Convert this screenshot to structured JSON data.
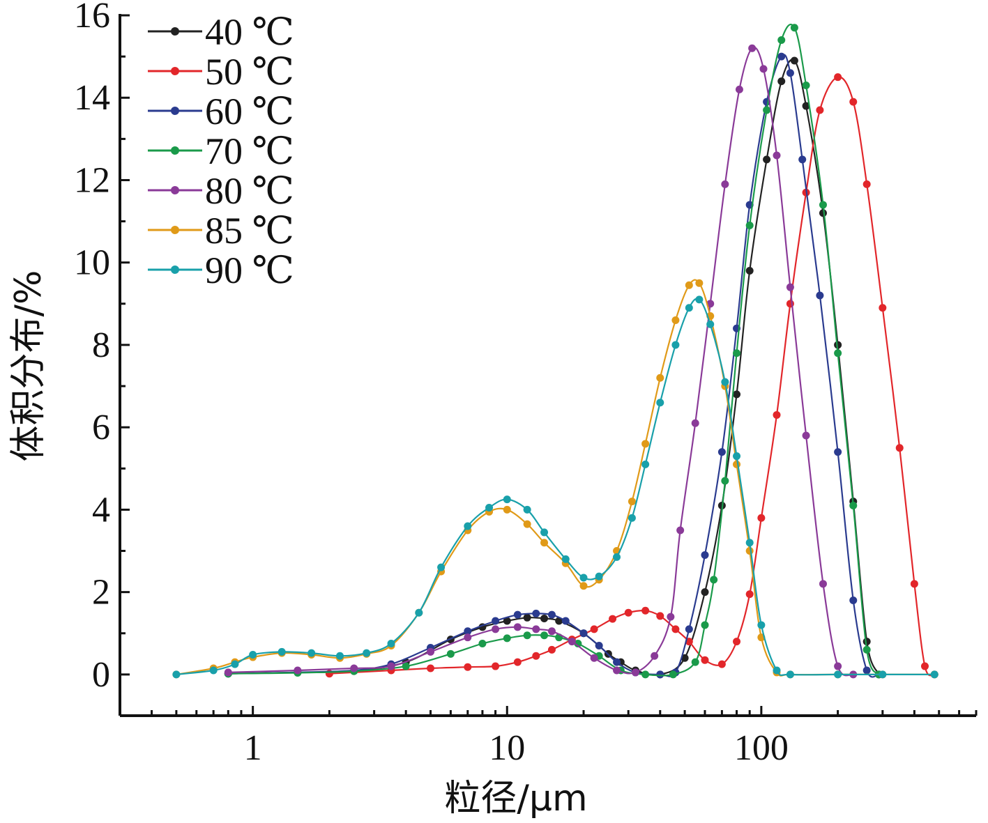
{
  "chart_data": {
    "type": "line",
    "xlabel": "粒径/μm",
    "ylabel": "体积分布/%",
    "x_scale": "log",
    "xlim": [
      0.3,
      700
    ],
    "ylim": [
      -1,
      16
    ],
    "x_ticks": [
      {
        "value": 1,
        "label": "1"
      },
      {
        "value": 10,
        "label": "10"
      },
      {
        "value": 100,
        "label": "100"
      }
    ],
    "y_ticks": [
      {
        "value": 0,
        "label": "0"
      },
      {
        "value": 2,
        "label": "2"
      },
      {
        "value": 4,
        "label": "4"
      },
      {
        "value": 6,
        "label": "6"
      },
      {
        "value": 8,
        "label": "8"
      },
      {
        "value": 10,
        "label": "10"
      },
      {
        "value": 12,
        "label": "12"
      },
      {
        "value": 14,
        "label": "14"
      },
      {
        "value": 16,
        "label": "16"
      }
    ],
    "grid": false,
    "legend_position": "top-left",
    "series": [
      {
        "name": "40 ℃",
        "color": "#222222",
        "points": [
          [
            0.8,
            0.02
          ],
          [
            1.5,
            0.05
          ],
          [
            2.5,
            0.08
          ],
          [
            4,
            0.3
          ],
          [
            6,
            0.85
          ],
          [
            8,
            1.15
          ],
          [
            10,
            1.3
          ],
          [
            12,
            1.38
          ],
          [
            14,
            1.36
          ],
          [
            16,
            1.3
          ],
          [
            20,
            1.0
          ],
          [
            25,
            0.5
          ],
          [
            28,
            0.3
          ],
          [
            32,
            0.1
          ],
          [
            40,
            0.0
          ],
          [
            50,
            0.4
          ],
          [
            60,
            2.0
          ],
          [
            70,
            4.1
          ],
          [
            80,
            6.8
          ],
          [
            90,
            9.8
          ],
          [
            105,
            12.5
          ],
          [
            120,
            14.4
          ],
          [
            135,
            14.9
          ],
          [
            150,
            13.8
          ],
          [
            175,
            11.2
          ],
          [
            200,
            8.0
          ],
          [
            230,
            4.2
          ],
          [
            260,
            0.8
          ],
          [
            290,
            0.0
          ]
        ]
      },
      {
        "name": "50 ℃",
        "color": "#e2262a",
        "points": [
          [
            2.0,
            0.02
          ],
          [
            3.5,
            0.1
          ],
          [
            5,
            0.15
          ],
          [
            7,
            0.18
          ],
          [
            9,
            0.2
          ],
          [
            11,
            0.3
          ],
          [
            13,
            0.45
          ],
          [
            15,
            0.6
          ],
          [
            18,
            0.85
          ],
          [
            22,
            1.1
          ],
          [
            26,
            1.35
          ],
          [
            30,
            1.5
          ],
          [
            35,
            1.55
          ],
          [
            40,
            1.42
          ],
          [
            46,
            1.1
          ],
          [
            52,
            0.8
          ],
          [
            60,
            0.35
          ],
          [
            70,
            0.25
          ],
          [
            80,
            0.8
          ],
          [
            90,
            1.95
          ],
          [
            100,
            3.8
          ],
          [
            115,
            6.3
          ],
          [
            130,
            9.0
          ],
          [
            150,
            11.7
          ],
          [
            170,
            13.7
          ],
          [
            200,
            14.5
          ],
          [
            230,
            13.9
          ],
          [
            260,
            11.9
          ],
          [
            300,
            8.9
          ],
          [
            350,
            5.5
          ],
          [
            400,
            2.2
          ],
          [
            440,
            0.2
          ],
          [
            480,
            0.0
          ]
        ]
      },
      {
        "name": "60 ℃",
        "color": "#2a3b8f",
        "points": [
          [
            0.8,
            0.02
          ],
          [
            1.5,
            0.05
          ],
          [
            2.5,
            0.1
          ],
          [
            3.5,
            0.25
          ],
          [
            5,
            0.65
          ],
          [
            7,
            1.05
          ],
          [
            9,
            1.3
          ],
          [
            11,
            1.45
          ],
          [
            13,
            1.48
          ],
          [
            15,
            1.45
          ],
          [
            17,
            1.3
          ],
          [
            20,
            1.0
          ],
          [
            23,
            0.7
          ],
          [
            27,
            0.3
          ],
          [
            32,
            0.05
          ],
          [
            40,
            0.0
          ],
          [
            46,
            0.05
          ],
          [
            52,
            1.1
          ],
          [
            60,
            2.9
          ],
          [
            70,
            5.4
          ],
          [
            80,
            8.4
          ],
          [
            90,
            11.4
          ],
          [
            105,
            13.9
          ],
          [
            120,
            15.0
          ],
          [
            130,
            14.6
          ],
          [
            145,
            12.5
          ],
          [
            170,
            9.2
          ],
          [
            200,
            5.4
          ],
          [
            230,
            1.8
          ],
          [
            260,
            0.1
          ],
          [
            290,
            0.0
          ]
        ]
      },
      {
        "name": "70 ℃",
        "color": "#1a9a4a",
        "points": [
          [
            0.8,
            0.02
          ],
          [
            1.5,
            0.04
          ],
          [
            2.5,
            0.08
          ],
          [
            4,
            0.2
          ],
          [
            6,
            0.5
          ],
          [
            8,
            0.75
          ],
          [
            10,
            0.88
          ],
          [
            12,
            0.95
          ],
          [
            14,
            0.95
          ],
          [
            16,
            0.9
          ],
          [
            19,
            0.75
          ],
          [
            23,
            0.45
          ],
          [
            28,
            0.1
          ],
          [
            35,
            0.0
          ],
          [
            45,
            0.0
          ],
          [
            55,
            0.3
          ],
          [
            60,
            1.2
          ],
          [
            65,
            2.3
          ],
          [
            72,
            4.7
          ],
          [
            80,
            7.8
          ],
          [
            90,
            10.9
          ],
          [
            105,
            13.7
          ],
          [
            120,
            15.4
          ],
          [
            135,
            15.7
          ],
          [
            150,
            14.3
          ],
          [
            175,
            11.4
          ],
          [
            200,
            7.8
          ],
          [
            230,
            4.1
          ],
          [
            260,
            0.6
          ],
          [
            290,
            0.0
          ]
        ]
      },
      {
        "name": "80 ℃",
        "color": "#8a3a98",
        "points": [
          [
            0.8,
            0.05
          ],
          [
            1.5,
            0.1
          ],
          [
            2.5,
            0.15
          ],
          [
            3.5,
            0.2
          ],
          [
            5,
            0.55
          ],
          [
            7,
            0.9
          ],
          [
            9,
            1.1
          ],
          [
            11,
            1.15
          ],
          [
            13,
            1.1
          ],
          [
            15,
            1.05
          ],
          [
            18,
            0.8
          ],
          [
            22,
            0.4
          ],
          [
            27,
            0.1
          ],
          [
            32,
            0.05
          ],
          [
            38,
            0.45
          ],
          [
            44,
            1.4
          ],
          [
            48,
            3.5
          ],
          [
            55,
            6.1
          ],
          [
            63,
            9.0
          ],
          [
            72,
            11.9
          ],
          [
            82,
            14.2
          ],
          [
            92,
            15.2
          ],
          [
            102,
            14.7
          ],
          [
            115,
            12.6
          ],
          [
            130,
            9.4
          ],
          [
            150,
            5.8
          ],
          [
            175,
            2.2
          ],
          [
            200,
            0.2
          ],
          [
            230,
            0.0
          ]
        ]
      },
      {
        "name": "85 ℃",
        "color": "#e09a18",
        "points": [
          [
            0.5,
            0.0
          ],
          [
            0.7,
            0.15
          ],
          [
            0.85,
            0.3
          ],
          [
            1.0,
            0.42
          ],
          [
            1.3,
            0.52
          ],
          [
            1.7,
            0.48
          ],
          [
            2.2,
            0.4
          ],
          [
            2.8,
            0.5
          ],
          [
            3.5,
            0.7
          ],
          [
            4.5,
            1.5
          ],
          [
            5.5,
            2.5
          ],
          [
            7,
            3.5
          ],
          [
            8.5,
            3.95
          ],
          [
            10,
            4.0
          ],
          [
            12,
            3.65
          ],
          [
            14,
            3.2
          ],
          [
            17,
            2.7
          ],
          [
            20,
            2.15
          ],
          [
            23,
            2.3
          ],
          [
            27,
            3.0
          ],
          [
            31,
            4.2
          ],
          [
            35,
            5.6
          ],
          [
            40,
            7.2
          ],
          [
            46,
            8.6
          ],
          [
            52,
            9.45
          ],
          [
            57,
            9.5
          ],
          [
            63,
            8.7
          ],
          [
            72,
            7.0
          ],
          [
            80,
            5.1
          ],
          [
            90,
            3.0
          ],
          [
            100,
            0.9
          ],
          [
            115,
            0.05
          ],
          [
            130,
            0.0
          ],
          [
            200,
            0.0
          ],
          [
            300,
            0.0
          ],
          [
            480,
            0.0
          ]
        ]
      },
      {
        "name": "90 ℃",
        "color": "#19a0aa",
        "points": [
          [
            0.5,
            0.0
          ],
          [
            0.7,
            0.1
          ],
          [
            0.85,
            0.25
          ],
          [
            1.0,
            0.48
          ],
          [
            1.3,
            0.55
          ],
          [
            1.7,
            0.52
          ],
          [
            2.2,
            0.45
          ],
          [
            2.8,
            0.52
          ],
          [
            3.5,
            0.75
          ],
          [
            4.5,
            1.5
          ],
          [
            5.5,
            2.6
          ],
          [
            7,
            3.6
          ],
          [
            8.5,
            4.05
          ],
          [
            10,
            4.25
          ],
          [
            12,
            4.0
          ],
          [
            14,
            3.45
          ],
          [
            17,
            2.8
          ],
          [
            20,
            2.35
          ],
          [
            23,
            2.38
          ],
          [
            27,
            2.85
          ],
          [
            31,
            3.8
          ],
          [
            35,
            5.1
          ],
          [
            40,
            6.6
          ],
          [
            46,
            8.0
          ],
          [
            52,
            8.9
          ],
          [
            57,
            9.1
          ],
          [
            63,
            8.5
          ],
          [
            72,
            7.1
          ],
          [
            80,
            5.3
          ],
          [
            90,
            3.2
          ],
          [
            100,
            1.2
          ],
          [
            115,
            0.1
          ],
          [
            130,
            0.0
          ],
          [
            200,
            0.0
          ],
          [
            300,
            0.0
          ],
          [
            480,
            0.0
          ]
        ]
      }
    ]
  }
}
